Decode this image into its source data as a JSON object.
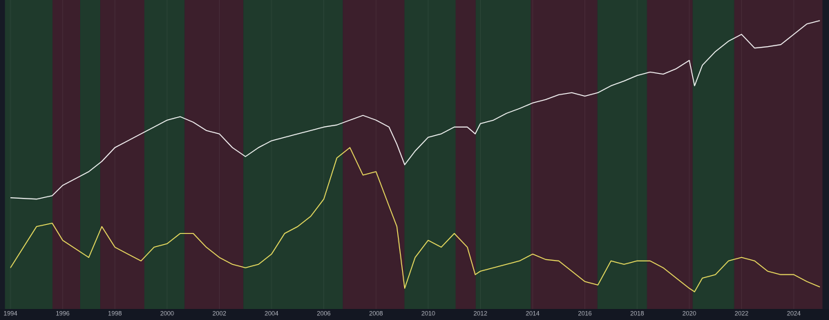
{
  "chart_data": {
    "type": "line",
    "xlim": [
      1993.6,
      2025.35
    ],
    "xticks": [
      1994,
      1996,
      1998,
      2000,
      2002,
      2004,
      2006,
      2008,
      2010,
      2012,
      2014,
      2016,
      2018,
      2020,
      2022,
      2024
    ],
    "ylim": [
      0,
      450
    ],
    "grid": true,
    "bands": [
      {
        "x": [
          1993.79,
          1995.61
        ],
        "color": "#1f3a2c"
      },
      {
        "x": [
          1995.61,
          1996.67
        ],
        "color": "#3c1f2c"
      },
      {
        "x": [
          1996.67,
          1997.44
        ],
        "color": "#1f3a2c"
      },
      {
        "x": [
          1997.44,
          1999.13
        ],
        "color": "#3c1f2c"
      },
      {
        "x": [
          1999.13,
          2000.67
        ],
        "color": "#1f3a2c"
      },
      {
        "x": [
          2000.67,
          2002.92
        ],
        "color": "#3c1f2c"
      },
      {
        "x": [
          2002.92,
          2006.73
        ],
        "color": "#1f3a2c"
      },
      {
        "x": [
          2006.73,
          2009.09
        ],
        "color": "#3c1f2c"
      },
      {
        "x": [
          2009.09,
          2011.05
        ],
        "color": "#1f3a2c"
      },
      {
        "x": [
          2011.05,
          2011.82
        ],
        "color": "#3c1f2c"
      },
      {
        "x": [
          2011.82,
          2013.93
        ],
        "color": "#1f3a2c"
      },
      {
        "x": [
          2013.93,
          2016.48
        ],
        "color": "#3c1f2c"
      },
      {
        "x": [
          2016.48,
          2018.38
        ],
        "color": "#1f3a2c"
      },
      {
        "x": [
          2018.38,
          2020.13
        ],
        "color": "#3c1f2c"
      },
      {
        "x": [
          2020.13,
          2021.72
        ],
        "color": "#1f3a2c"
      },
      {
        "x": [
          2021.72,
          2025.1
        ],
        "color": "#3c1f2c"
      }
    ],
    "x": [
      1994,
      1995,
      1995.6,
      1996,
      1997,
      1997.5,
      1998,
      1998.5,
      1999,
      1999.5,
      2000,
      2000.5,
      2001,
      2001.5,
      2002,
      2002.5,
      2003,
      2003.5,
      2004,
      2004.5,
      2005,
      2005.5,
      2006,
      2006.5,
      2007,
      2007.5,
      2008,
      2008.5,
      2008.8,
      2009.1,
      2009.5,
      2010,
      2010.5,
      2011,
      2011.5,
      2011.8,
      2012,
      2012.5,
      2013,
      2013.5,
      2014,
      2014.5,
      2015,
      2015.5,
      2016,
      2016.5,
      2017,
      2017.5,
      2018,
      2018.5,
      2019,
      2019.5,
      2020,
      2020.2,
      2020.5,
      2021,
      2021.5,
      2022,
      2022.5,
      2023,
      2023.5,
      2024,
      2024.5,
      2025
    ],
    "series": [
      {
        "color": "#ffffff",
        "values": [
          162,
          160,
          165,
          180,
          200,
          215,
          235,
          245,
          255,
          265,
          275,
          280,
          272,
          260,
          255,
          235,
          222,
          235,
          245,
          250,
          255,
          260,
          265,
          268,
          275,
          282,
          275,
          265,
          240,
          210,
          230,
          250,
          255,
          265,
          265,
          255,
          270,
          275,
          285,
          292,
          300,
          305,
          312,
          315,
          310,
          315,
          325,
          332,
          340,
          345,
          342,
          350,
          362,
          325,
          355,
          375,
          390,
          400,
          380,
          382,
          385,
          400,
          415,
          420
        ]
      },
      {
        "color": "#f5e663",
        "values": [
          60,
          120,
          125,
          100,
          75,
          120,
          90,
          80,
          70,
          90,
          95,
          110,
          110,
          90,
          75,
          65,
          60,
          65,
          80,
          110,
          120,
          135,
          160,
          220,
          235,
          195,
          200,
          150,
          120,
          30,
          75,
          100,
          90,
          110,
          90,
          50,
          55,
          60,
          65,
          70,
          80,
          72,
          70,
          55,
          40,
          35,
          70,
          65,
          70,
          70,
          60,
          45,
          30,
          25,
          45,
          50,
          70,
          75,
          70,
          55,
          50,
          50,
          40,
          32
        ]
      }
    ]
  }
}
